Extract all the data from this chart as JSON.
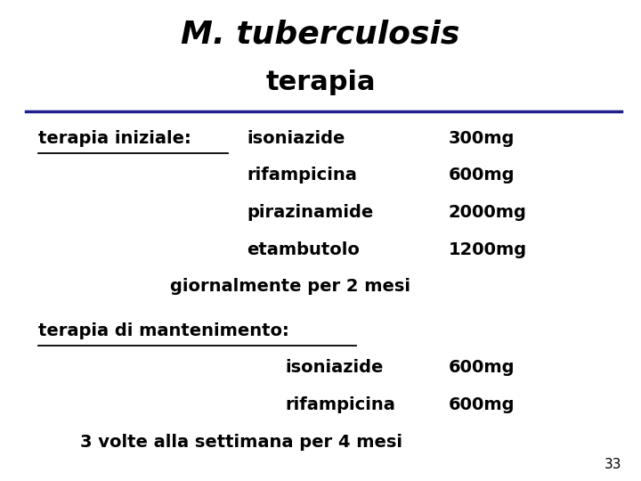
{
  "title_line1": "M. tuberculosis",
  "title_line2": "terapia",
  "bg_color": "#ffffff",
  "text_color": "#000000",
  "title_color": "#000000",
  "separator_color": "#1f1f8f",
  "slide_number": "33",
  "section1_label": "terapia iniziale:",
  "section1_drugs": [
    "isoniazide",
    "rifampicina",
    "pirazinamide",
    "etambutolo"
  ],
  "section1_doses": [
    "300mg",
    "600mg",
    "2000mg",
    "1200mg"
  ],
  "section1_footer": "giornalmente per 2 mesi",
  "section2_label": "terapia di mantenimento:",
  "section2_drugs": [
    "isoniazide",
    "rifampicina"
  ],
  "section2_doses": [
    "600mg",
    "600mg"
  ],
  "section2_footer": "3 volte alla settimana per 4 mesi"
}
